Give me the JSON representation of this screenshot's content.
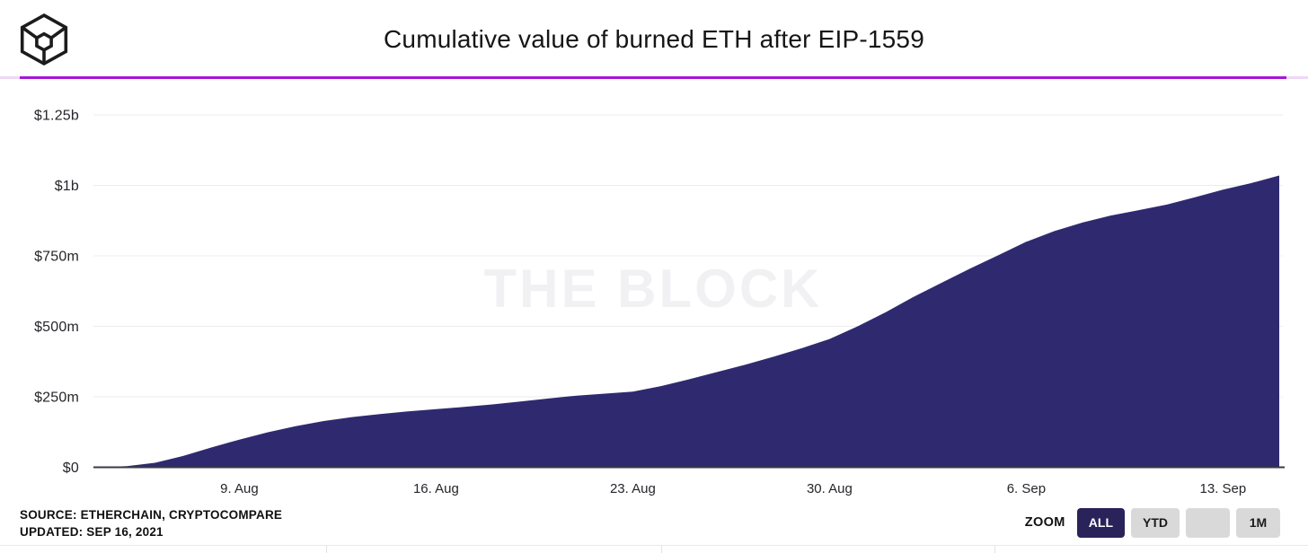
{
  "chart_data": {
    "type": "area",
    "title": "Cumulative value of burned ETH after EIP-1559",
    "xlabel": "",
    "ylabel": "",
    "unit": "million USD",
    "ylim": [
      0,
      1250
    ],
    "grid": "on",
    "legend": "off",
    "watermark": "THE BLOCK",
    "area_color": "#2f2a70",
    "dates": [
      "Aug 4",
      "Aug 5",
      "Aug 6",
      "Aug 7",
      "Aug 8",
      "Aug 9",
      "Aug 10",
      "Aug 11",
      "Aug 12",
      "Aug 13",
      "Aug 14",
      "Aug 15",
      "Aug 16",
      "Aug 17",
      "Aug 18",
      "Aug 19",
      "Aug 20",
      "Aug 21",
      "Aug 22",
      "Aug 23",
      "Aug 24",
      "Aug 25",
      "Aug 26",
      "Aug 27",
      "Aug 28",
      "Aug 29",
      "Aug 30",
      "Aug 31",
      "Sep 1",
      "Sep 2",
      "Sep 3",
      "Sep 4",
      "Sep 5",
      "Sep 6",
      "Sep 7",
      "Sep 8",
      "Sep 9",
      "Sep 10",
      "Sep 11",
      "Sep 12",
      "Sep 13",
      "Sep 14",
      "Sep 15"
    ],
    "values_musd": [
      0,
      4,
      16,
      40,
      70,
      98,
      124,
      146,
      164,
      178,
      189,
      198,
      206,
      214,
      223,
      233,
      244,
      254,
      261,
      268,
      288,
      312,
      338,
      364,
      392,
      422,
      455,
      500,
      550,
      605,
      655,
      705,
      752,
      800,
      838,
      868,
      893,
      912,
      932,
      958,
      985,
      1008,
      1035
    ],
    "yticks": [
      {
        "value": 0,
        "label": "$0"
      },
      {
        "value": 250,
        "label": "$250m"
      },
      {
        "value": 500,
        "label": "$500m"
      },
      {
        "value": 750,
        "label": "$750m"
      },
      {
        "value": 1000,
        "label": "$1b"
      },
      {
        "value": 1250,
        "label": "$1.25b"
      }
    ],
    "xticks": [
      {
        "index": 5,
        "label": "9. Aug"
      },
      {
        "index": 12,
        "label": "16. Aug"
      },
      {
        "index": 19,
        "label": "23. Aug"
      },
      {
        "index": 26,
        "label": "30. Aug"
      },
      {
        "index": 33,
        "label": "6. Sep"
      },
      {
        "index": 40,
        "label": "13. Sep"
      }
    ]
  },
  "footer": {
    "source_line1": "SOURCE: ETHERCHAIN, CRYPTOCOMPARE",
    "source_line2": "UPDATED: SEP 16, 2021",
    "zoom_label": "ZOOM",
    "zoom_buttons": [
      {
        "label": "ALL",
        "active": true
      },
      {
        "label": "YTD",
        "active": false
      },
      {
        "label": "",
        "active": false
      },
      {
        "label": "1M",
        "active": false
      }
    ]
  },
  "colors": {
    "accent_rule": "#a516d6",
    "area_fill": "#2f2a70",
    "active_button_bg": "#2a2359",
    "inactive_button_bg": "#d9d9d9"
  }
}
